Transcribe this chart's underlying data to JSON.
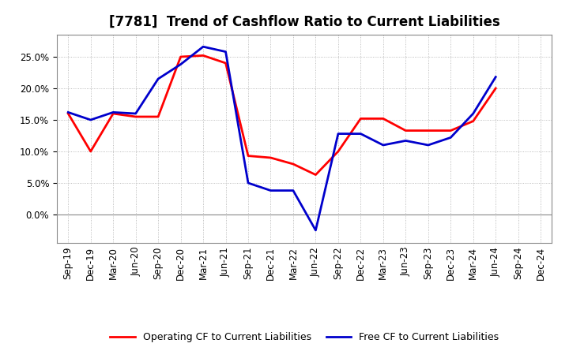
{
  "title": "[7781]  Trend of Cashflow Ratio to Current Liabilities",
  "x_labels": [
    "Sep-19",
    "Dec-19",
    "Mar-20",
    "Jun-20",
    "Sep-20",
    "Dec-20",
    "Mar-21",
    "Jun-21",
    "Sep-21",
    "Dec-21",
    "Mar-22",
    "Jun-22",
    "Sep-22",
    "Dec-22",
    "Mar-23",
    "Jun-23",
    "Sep-23",
    "Dec-23",
    "Mar-24",
    "Jun-24",
    "Sep-24",
    "Dec-24"
  ],
  "operating_cf": [
    0.16,
    0.1,
    0.16,
    0.155,
    0.155,
    0.25,
    0.252,
    0.24,
    0.093,
    0.09,
    0.08,
    0.063,
    0.1,
    0.152,
    0.152,
    0.133,
    0.133,
    0.133,
    0.148,
    0.2,
    null,
    null
  ],
  "free_cf": [
    0.162,
    0.15,
    0.162,
    0.16,
    0.215,
    0.238,
    0.266,
    0.258,
    0.05,
    0.038,
    0.038,
    -0.025,
    0.128,
    0.128,
    0.11,
    0.117,
    0.11,
    0.122,
    0.16,
    0.218,
    null,
    null
  ],
  "operating_color": "#FF0000",
  "free_color": "#0000CC",
  "ylim": [
    -0.045,
    0.285
  ],
  "yticks": [
    0.0,
    0.05,
    0.1,
    0.15,
    0.2,
    0.25
  ],
  "background_color": "#FFFFFF",
  "grid_color": "#AAAAAA",
  "legend_op": "Operating CF to Current Liabilities",
  "legend_free": "Free CF to Current Liabilities",
  "title_fontsize": 12,
  "tick_fontsize": 8.5
}
